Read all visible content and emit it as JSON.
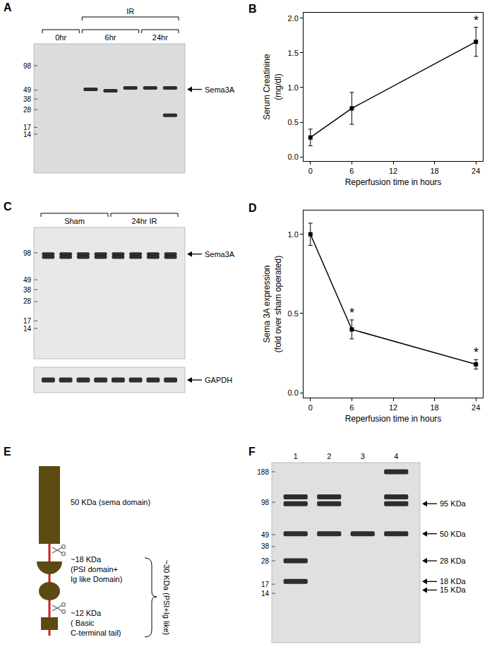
{
  "chart_data": [
    {
      "panel": "B",
      "type": "line",
      "x": [
        0,
        6,
        24
      ],
      "values": [
        0.28,
        0.7,
        1.66
      ],
      "errors": [
        0.12,
        0.23,
        0.21
      ],
      "color": "#000000",
      "marker": "square",
      "xlabel": "Reperfusion time in hours",
      "ylabel": [
        "Serum Creatinine",
        "(mg/dl)"
      ],
      "xlim": [
        -1,
        25
      ],
      "xticks": [
        0,
        6,
        12,
        18,
        24
      ],
      "ylim": [
        -0.06,
        2.08
      ],
      "yticks": [
        {
          "value": 0,
          "label": "0.0"
        },
        0.5,
        {
          "value": 1,
          "label": "1.0"
        },
        1.5,
        {
          "value": 2,
          "label": "2.0"
        }
      ],
      "annotations": [
        {
          "x": 24,
          "text": "*"
        }
      ]
    },
    {
      "panel": "D",
      "type": "line",
      "x": [
        0,
        6,
        24
      ],
      "values": [
        1.0,
        0.4,
        0.18
      ],
      "errors": [
        0.07,
        0.06,
        0.03
      ],
      "color": "#000000",
      "marker": "square",
      "xlabel": "Reperfusion time in hours",
      "ylabel": [
        "Sema 3A expression",
        "(fold over sham operated)"
      ],
      "xlim": [
        -1,
        25
      ],
      "xticks": [
        0,
        6,
        12,
        18,
        24
      ],
      "ylim": [
        -0.03,
        1.15
      ],
      "yticks": [
        {
          "value": 0,
          "label": "0.0"
        },
        0.5,
        {
          "value": 1,
          "label": "1.0"
        }
      ],
      "annotations": [
        {
          "x": 6,
          "text": "*"
        },
        {
          "x": 24,
          "text": "*"
        }
      ]
    }
  ],
  "blots": [
    {
      "panel": "A",
      "markers": [
        98,
        49,
        38,
        28,
        17,
        14
      ],
      "groups": [
        {
          "label": "0hr",
          "lanes": [
            [],
            []
          ]
        },
        {
          "label": "6hr",
          "lanes": [
            [
              50
            ],
            [
              48
            ],
            [
              52
            ]
          ]
        },
        {
          "label": "24hr",
          "lanes": [
            [
              52
            ],
            [
              52,
              24
            ]
          ]
        }
      ],
      "super_groups": [
        {
          "label": "IR",
          "groups": [
            1,
            2
          ]
        }
      ],
      "band_labels": [
        {
          "text": "Sema3A",
          "kda": 50
        }
      ]
    },
    {
      "panel": "C",
      "markers": [
        98,
        49,
        38,
        28,
        17,
        14
      ],
      "groups": [
        {
          "label": "Sham",
          "lanes": [
            [
              95,
              88
            ],
            [
              95,
              88
            ],
            [
              95,
              88
            ],
            [
              95,
              88
            ]
          ]
        },
        {
          "label": "24hr IR",
          "lanes": [
            [
              95,
              88
            ],
            [
              95,
              88
            ],
            [
              95,
              88
            ],
            [
              95,
              88
            ]
          ]
        }
      ],
      "super_groups": [],
      "band_labels": [
        {
          "text": "Sema3A",
          "kda": 95
        }
      ],
      "loading_control": {
        "label": "GAPDH"
      }
    },
    {
      "panel": "F",
      "markers": [
        188,
        98,
        49,
        38,
        28,
        17,
        14
      ],
      "groups": [
        {
          "label": "1",
          "lanes": [
            [
              110,
              95,
              50,
              28,
              18
            ]
          ]
        },
        {
          "label": "2",
          "lanes": [
            [
              110,
              95,
              50
            ]
          ]
        },
        {
          "label": "3",
          "lanes": [
            [
              50
            ]
          ]
        },
        {
          "label": "4",
          "lanes": [
            [
              188,
              110,
              95,
              50
            ]
          ]
        }
      ],
      "super_groups": [],
      "band_labels": [
        {
          "text": "95 KDa",
          "kda": 95
        },
        {
          "text": "50 KDa",
          "kda": 50
        },
        {
          "text": "28 KDa",
          "kda": 28
        },
        {
          "text": "18 KDa",
          "kda": 18
        },
        {
          "text": "15 KDa",
          "kda": 15
        }
      ]
    }
  ],
  "diagram": {
    "panel": "E",
    "segments": [
      {
        "lines": [
          "50 KDa (sema domain)"
        ]
      },
      {
        "lines": [
          "~18 KDa",
          "(PSI domain+",
          "Ig like Domain)"
        ]
      },
      {
        "lines": [
          "~12 KDa",
          "( Basic",
          "C-terminal tail)"
        ]
      }
    ],
    "bracket": {
      "text": "~30 KDa (PSI+Ig like)"
    }
  }
}
